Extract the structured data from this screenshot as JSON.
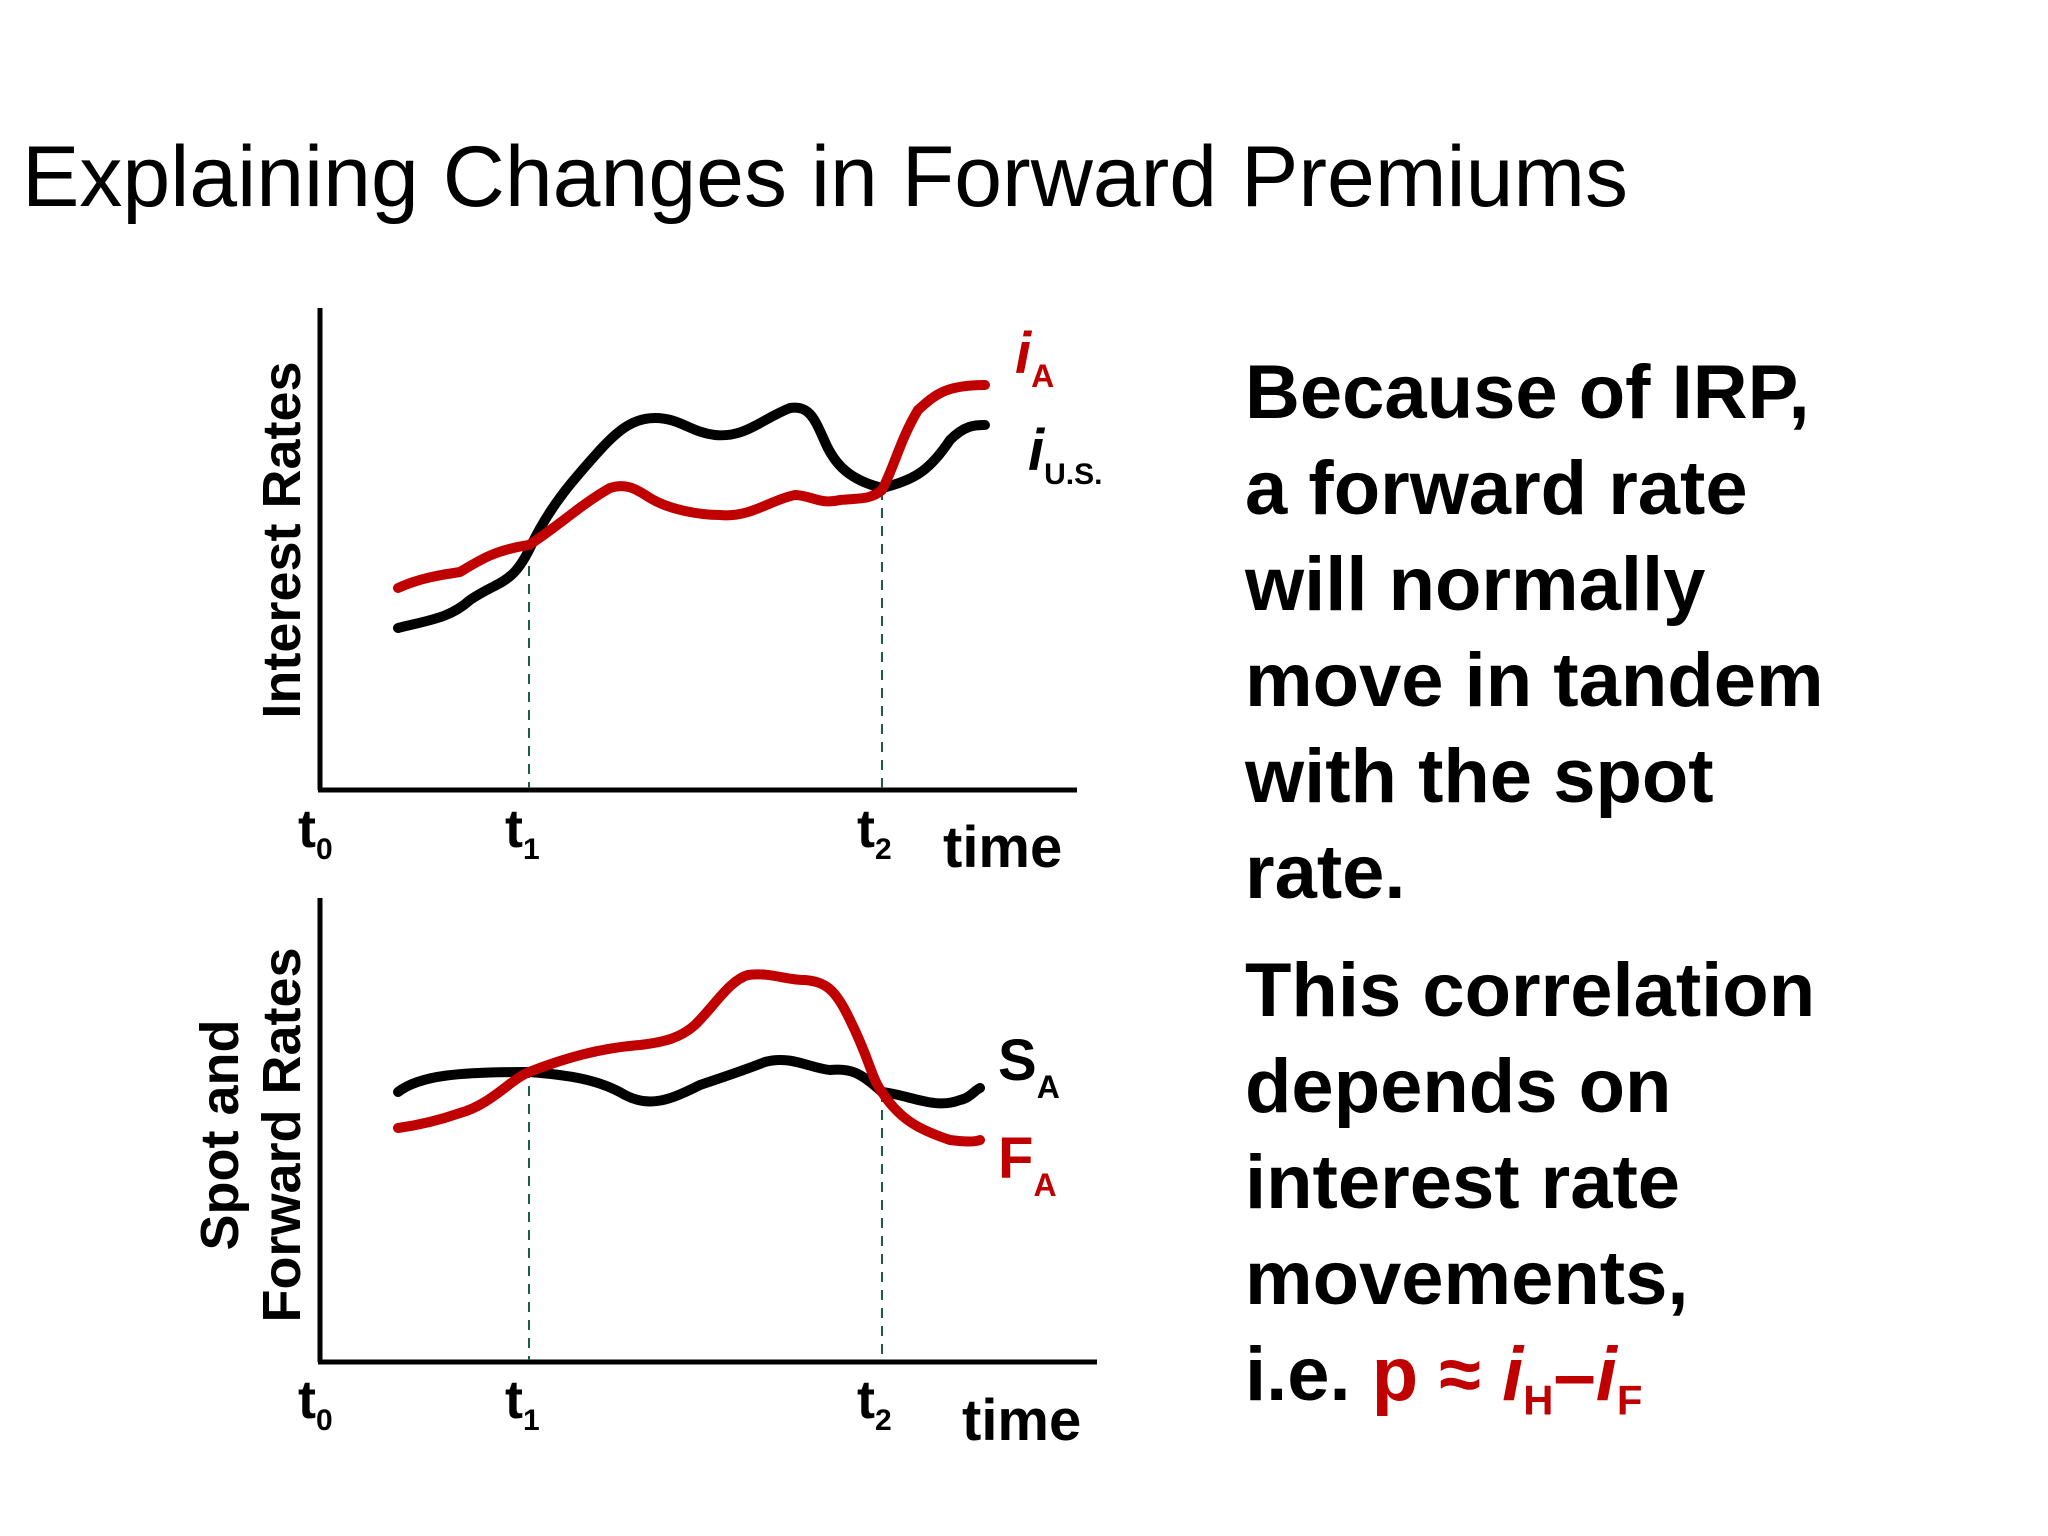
{
  "title": "Explaining Changes in Forward Premiums",
  "colors": {
    "red": "#c00000",
    "black": "#000000",
    "guide": "#1b5e46"
  },
  "top_chart": {
    "ylabel": "Interest Rates",
    "xlabel": "time",
    "ticks": [
      {
        "t": "t",
        "sub": "0"
      },
      {
        "t": "t",
        "sub": "1"
      },
      {
        "t": "t",
        "sub": "2"
      }
    ],
    "series": [
      {
        "label_main": "i",
        "label_sub": "A",
        "color": "#c00000"
      },
      {
        "label_main": "i",
        "label_sub": "U.S.",
        "color": "#000000"
      }
    ]
  },
  "bottom_chart": {
    "ylabel_line1": "Spot and",
    "ylabel_line2": "Forward Rates",
    "xlabel": "time",
    "ticks": [
      {
        "t": "t",
        "sub": "0"
      },
      {
        "t": "t",
        "sub": "1"
      },
      {
        "t": "t",
        "sub": "2"
      }
    ],
    "series": [
      {
        "label_main": "S",
        "label_sub": "A",
        "color": "#000000"
      },
      {
        "label_main": "F",
        "label_sub": "A",
        "color": "#c00000"
      }
    ]
  },
  "explanation": {
    "para1": [
      "Because of IRP,",
      "a forward rate",
      "will normally",
      "move in tandem",
      "with the spot",
      "rate."
    ],
    "para2": [
      "This correlation",
      "depends on",
      "interest rate",
      "movements,"
    ],
    "formula_prefix": "i.e. ",
    "formula_p": "p",
    "formula_approx": " ≈ ",
    "formula_i1": "i",
    "formula_sub1": "H",
    "formula_dash": "–",
    "formula_i2": "i",
    "formula_sub2": "F"
  }
}
